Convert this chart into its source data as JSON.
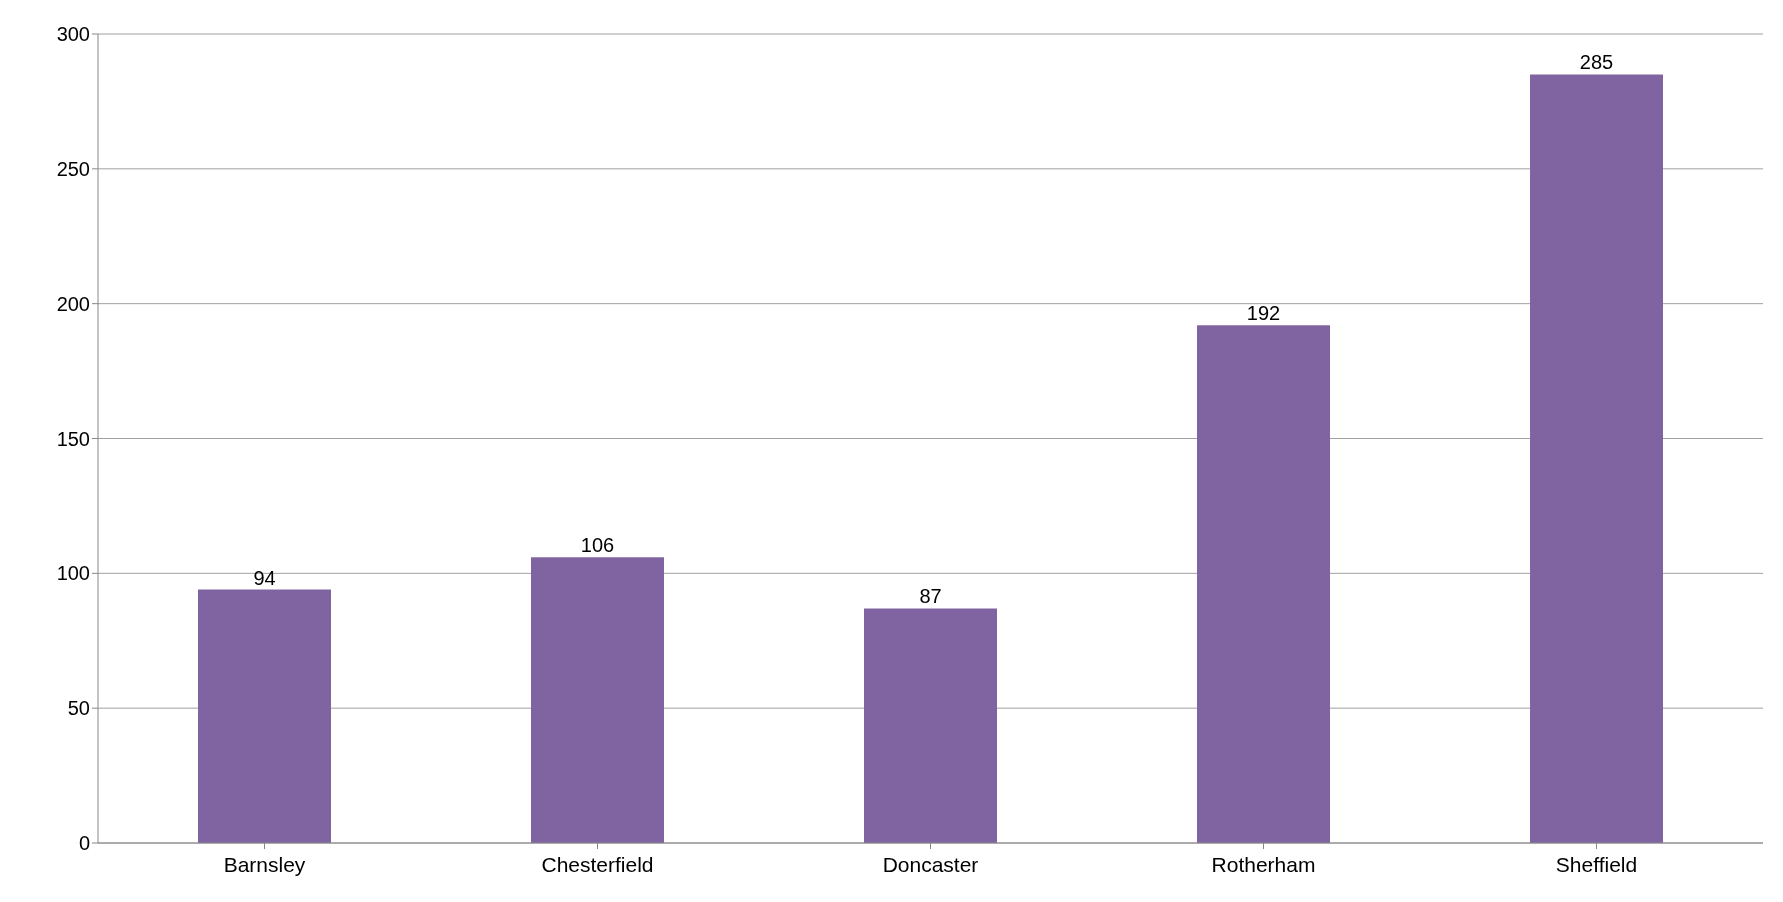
{
  "chart_data": {
    "type": "bar",
    "categories": [
      "Barnsley",
      "Chesterfield",
      "Doncaster",
      "Rotherham",
      "Sheffield"
    ],
    "values": [
      94,
      106,
      87,
      192,
      285
    ],
    "color": "#8064a2",
    "ylim": [
      0,
      300
    ],
    "yticks": [
      0,
      50,
      100,
      150,
      200,
      250,
      300
    ],
    "grid": "y",
    "data_labels": true
  }
}
